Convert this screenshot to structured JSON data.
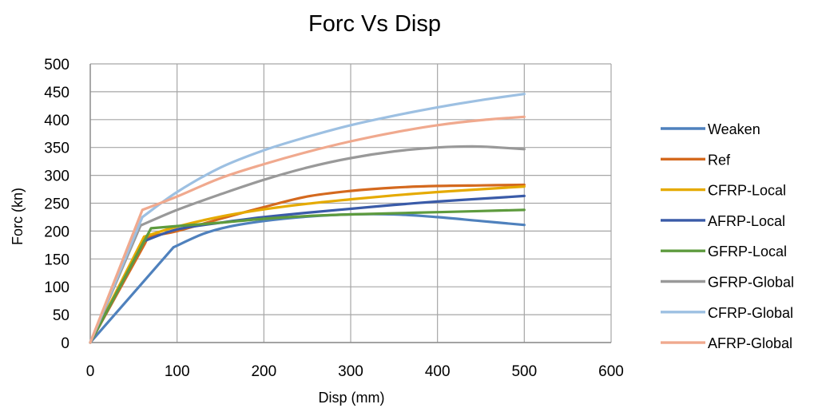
{
  "chart_data": {
    "type": "line",
    "title": "Forc Vs Disp",
    "xlabel": "Disp  (mm)",
    "ylabel": "Forc  (kn)",
    "xlim": [
      0,
      600
    ],
    "ylim": [
      0,
      500
    ],
    "x_ticks": [
      0,
      100,
      200,
      300,
      400,
      500,
      600
    ],
    "y_ticks": [
      0,
      50,
      100,
      150,
      200,
      250,
      300,
      350,
      400,
      450,
      500
    ],
    "grid": true,
    "legend_position": "right",
    "series": [
      {
        "name": "Weaken",
        "color": "#4F81BD",
        "points": [
          [
            0,
            0
          ],
          [
            96,
            171
          ],
          [
            130,
            195
          ],
          [
            160,
            208
          ],
          [
            200,
            218
          ],
          [
            250,
            226
          ],
          [
            300,
            230
          ],
          [
            350,
            230
          ],
          [
            400,
            225
          ],
          [
            450,
            218
          ],
          [
            500,
            211
          ]
        ]
      },
      {
        "name": "Ref",
        "color": "#D4691E",
        "points": [
          [
            0,
            0
          ],
          [
            63,
            178
          ],
          [
            70,
            190
          ],
          [
            100,
            200
          ],
          [
            150,
            222
          ],
          [
            200,
            243
          ],
          [
            250,
            262
          ],
          [
            300,
            272
          ],
          [
            350,
            278
          ],
          [
            400,
            281
          ],
          [
            450,
            282
          ],
          [
            500,
            283
          ]
        ]
      },
      {
        "name": "CFRP-Local",
        "color": "#E5AA00",
        "points": [
          [
            0,
            0
          ],
          [
            62,
            190
          ],
          [
            100,
            208
          ],
          [
            150,
            226
          ],
          [
            200,
            239
          ],
          [
            250,
            249
          ],
          [
            300,
            257
          ],
          [
            350,
            264
          ],
          [
            400,
            270
          ],
          [
            450,
            275
          ],
          [
            500,
            280
          ]
        ]
      },
      {
        "name": "AFRP-Local",
        "color": "#3A5BA8",
        "points": [
          [
            0,
            0
          ],
          [
            62,
            182
          ],
          [
            100,
            203
          ],
          [
            150,
            215
          ],
          [
            200,
            225
          ],
          [
            250,
            233
          ],
          [
            300,
            240
          ],
          [
            350,
            247
          ],
          [
            400,
            253
          ],
          [
            450,
            258
          ],
          [
            500,
            263
          ]
        ]
      },
      {
        "name": "GFRP-Local",
        "color": "#5E9B3E",
        "points": [
          [
            0,
            0
          ],
          [
            70,
            205
          ],
          [
            100,
            209
          ],
          [
            150,
            215
          ],
          [
            200,
            222
          ],
          [
            250,
            227
          ],
          [
            300,
            230
          ],
          [
            350,
            232
          ],
          [
            400,
            234
          ],
          [
            450,
            236
          ],
          [
            500,
            238
          ]
        ]
      },
      {
        "name": "GFRP-Global",
        "color": "#999999",
        "points": [
          [
            0,
            0
          ],
          [
            58,
            210
          ],
          [
            100,
            238
          ],
          [
            150,
            266
          ],
          [
            200,
            292
          ],
          [
            250,
            314
          ],
          [
            300,
            331
          ],
          [
            350,
            343
          ],
          [
            400,
            350
          ],
          [
            440,
            352
          ],
          [
            470,
            350
          ],
          [
            500,
            347
          ]
        ]
      },
      {
        "name": "CFRP-Global",
        "color": "#9DC0E2",
        "points": [
          [
            0,
            0
          ],
          [
            60,
            225
          ],
          [
            100,
            270
          ],
          [
            150,
            314
          ],
          [
            200,
            345
          ],
          [
            250,
            369
          ],
          [
            300,
            390
          ],
          [
            350,
            407
          ],
          [
            400,
            422
          ],
          [
            450,
            435
          ],
          [
            500,
            446
          ]
        ]
      },
      {
        "name": "AFRP-Global",
        "color": "#F0A98E",
        "points": [
          [
            0,
            0
          ],
          [
            60,
            238
          ],
          [
            100,
            262
          ],
          [
            150,
            295
          ],
          [
            200,
            320
          ],
          [
            250,
            342
          ],
          [
            300,
            361
          ],
          [
            350,
            377
          ],
          [
            400,
            390
          ],
          [
            450,
            399
          ],
          [
            500,
            405
          ]
        ]
      }
    ]
  }
}
